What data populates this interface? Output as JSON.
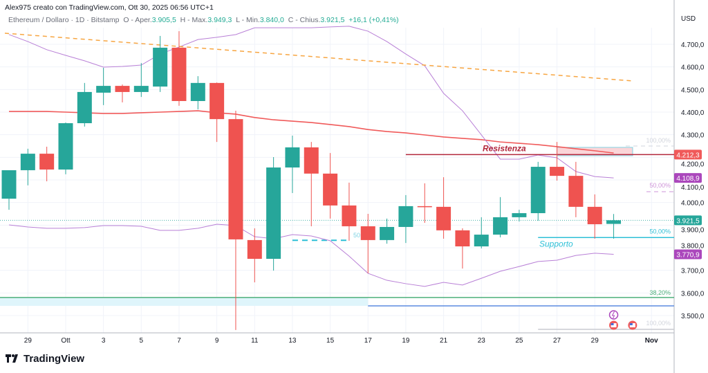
{
  "header": {
    "author_line": "Alex975 creato con TradingView.com, Ott 30, 2025 06:56 UTC+1",
    "symbol": "Ethereum / Dollaro · 1D · Bitstamp",
    "open_label": "O - Aper.",
    "open": "3.905,5",
    "high_label": "H - Max.",
    "high": "3.949,3",
    "low_label": "L - Min.",
    "low": "3.840,0",
    "close_label": "C - Chius.",
    "close": "3.921,5",
    "change": "+16,1 (+0,41%)"
  },
  "logo": {
    "text": "TradingView"
  },
  "currency": "USD",
  "colors": {
    "up": "#26a69a",
    "down": "#ef5350",
    "ma": "#f05a5a",
    "bands": "#b87fd6",
    "trend": "#f7a541",
    "resistance": "#b2263b",
    "support": "#2dbfd6",
    "fib_382": "#4caf7a",
    "fib_blue": "#5b8be0"
  },
  "chart_data": {
    "type": "candlestick",
    "title": "",
    "y_axis": {
      "min": 3440,
      "max": 4800,
      "ticks": [
        4700,
        4600,
        4500,
        4400,
        4300,
        4200,
        4100,
        4000,
        3900,
        3800,
        3700,
        3600,
        3500
      ],
      "tick_labels": [
        "4.700,0",
        "4.600,0",
        "4.500,0",
        "4.400,0",
        "4.300,0",
        "4.200,0",
        "4.100,0",
        "4.000,0",
        "3.900,0",
        "3.800,0",
        "3.700,0",
        "3.600,0",
        "3.500,0"
      ]
    },
    "x_axis": {
      "ticks": [
        {
          "date": "2025-09-29",
          "label": "29"
        },
        {
          "date": "2025-10-01",
          "label": "Ott"
        },
        {
          "date": "2025-10-03",
          "label": "3"
        },
        {
          "date": "2025-10-05",
          "label": "5"
        },
        {
          "date": "2025-10-07",
          "label": "7"
        },
        {
          "date": "2025-10-09",
          "label": "9"
        },
        {
          "date": "2025-10-11",
          "label": "11"
        },
        {
          "date": "2025-10-13",
          "label": "13"
        },
        {
          "date": "2025-10-15",
          "label": "15"
        },
        {
          "date": "2025-10-17",
          "label": "17"
        },
        {
          "date": "2025-10-19",
          "label": "19"
        },
        {
          "date": "2025-10-21",
          "label": "21"
        },
        {
          "date": "2025-10-23",
          "label": "23"
        },
        {
          "date": "2025-10-25",
          "label": "25"
        },
        {
          "date": "2025-10-27",
          "label": "27"
        },
        {
          "date": "2025-10-29",
          "label": "29"
        },
        {
          "date": "2025-11-01",
          "label": "Nov"
        }
      ]
    },
    "grid": true,
    "candles": [
      [
        "2025-09-28",
        4017,
        4143,
        3968,
        4143
      ],
      [
        "2025-09-29",
        4143,
        4238,
        4076,
        4216
      ],
      [
        "2025-09-30",
        4216,
        4247,
        4094,
        4146
      ],
      [
        "2025-10-01",
        4146,
        4354,
        4125,
        4351
      ],
      [
        "2025-10-02",
        4351,
        4529,
        4336,
        4489
      ],
      [
        "2025-10-03",
        4486,
        4596,
        4431,
        4516
      ],
      [
        "2025-10-04",
        4516,
        4522,
        4443,
        4489
      ],
      [
        "2025-10-05",
        4489,
        4617,
        4467,
        4516
      ],
      [
        "2025-10-06",
        4513,
        4737,
        4489,
        4685
      ],
      [
        "2025-10-07",
        4685,
        4758,
        4428,
        4449
      ],
      [
        "2025-10-08",
        4449,
        4559,
        4412,
        4529
      ],
      [
        "2025-10-09",
        4529,
        4531,
        4268,
        4369
      ],
      [
        "2025-10-10",
        4369,
        4406,
        3436,
        3837
      ],
      [
        "2025-10-11",
        3834,
        3886,
        3647,
        3751
      ],
      [
        "2025-10-12",
        3751,
        4201,
        3699,
        4155
      ],
      [
        "2025-10-13",
        4155,
        4296,
        4042,
        4244
      ],
      [
        "2025-10-14",
        4244,
        4268,
        3895,
        4128
      ],
      [
        "2025-10-15",
        4128,
        4219,
        3929,
        3987
      ],
      [
        "2025-10-16",
        3987,
        4088,
        3831,
        3895
      ],
      [
        "2025-10-17",
        3895,
        3950,
        3687,
        3834
      ],
      [
        "2025-10-18",
        3834,
        3929,
        3818,
        3892
      ],
      [
        "2025-10-19",
        3892,
        4033,
        3821,
        3984
      ],
      [
        "2025-10-20",
        3984,
        4085,
        3910,
        3981
      ],
      [
        "2025-10-21",
        3981,
        4112,
        3840,
        3877
      ],
      [
        "2025-10-22",
        3877,
        3886,
        3708,
        3806
      ],
      [
        "2025-10-23",
        3806,
        3935,
        3797,
        3858
      ],
      [
        "2025-10-24",
        3858,
        4024,
        3846,
        3935
      ],
      [
        "2025-10-25",
        3935,
        3968,
        3916,
        3953
      ],
      [
        "2025-10-26",
        3953,
        4180,
        3919,
        4158
      ],
      [
        "2025-10-27",
        4158,
        4268,
        4097,
        4118
      ],
      [
        "2025-10-28",
        4118,
        4180,
        3935,
        3981
      ],
      [
        "2025-10-29",
        3981,
        4036,
        3840,
        3904
      ],
      [
        "2025-10-30",
        3905.5,
        3949.3,
        3840.0,
        3921.5
      ]
    ],
    "series": [
      {
        "kind": "moving-average",
        "color": "#f05a5a",
        "values": [
          4403,
          4403,
          4403,
          4400,
          4397,
          4394,
          4394,
          4397,
          4400,
          4403,
          4406,
          4397,
          4391,
          4376,
          4366,
          4360,
          4354,
          4345,
          4336,
          4323,
          4314,
          4308,
          4299,
          4290,
          4284,
          4278,
          4268,
          4262,
          4256,
          4247,
          4238,
          4229,
          4219
        ]
      },
      {
        "kind": "bollinger-upper",
        "color": "#b87fd6",
        "values": [
          4743,
          4712,
          4676,
          4651,
          4627,
          4599,
          4602,
          4608,
          4657,
          4688,
          4721,
          4731,
          4743,
          4773,
          4773,
          4773,
          4773,
          4777,
          4780,
          4758,
          4712,
          4657,
          4605,
          4483,
          4406,
          4299,
          4192,
          4192,
          4210,
          4198,
          4137,
          4115,
          4108.9
        ]
      },
      {
        "kind": "bollinger-lower",
        "color": "#b87fd6",
        "values": [
          3901,
          3892,
          3886,
          3886,
          3889,
          3898,
          3898,
          3895,
          3877,
          3877,
          3886,
          3904,
          3898,
          3849,
          3840,
          3858,
          3852,
          3831,
          3763,
          3687,
          3656,
          3641,
          3629,
          3647,
          3635,
          3665,
          3696,
          3717,
          3739,
          3745,
          3766,
          3776,
          3770.9
        ]
      }
    ],
    "trendline": {
      "from": {
        "date": "2025-09-28",
        "price": 4749
      },
      "to": {
        "date": "2025-10-31",
        "price": 4538
      }
    },
    "drawings": {
      "resistance": {
        "label": "Resistenza",
        "price": 4212.3,
        "from": "2025-10-19"
      },
      "support": {
        "label": "Supporto",
        "price": 3845,
        "from": "2025-10-26"
      },
      "resistance_zone": {
        "from": "2025-10-27",
        "to": "2025-10-31",
        "top": 4244,
        "bottom": 4207
      },
      "fib_top": {
        "label": "100,00%",
        "price": 4250
      },
      "fib_mid_upper": {
        "label": "50,00%",
        "price": 4048
      },
      "fib_mid_support": {
        "label": "50,00%"
      },
      "fib_mid_left": {
        "label": "50,00%",
        "price": 3833,
        "from": "2025-10-13",
        "to": "2025-10-16"
      },
      "fib_382": {
        "label": "38,20%",
        "price": 3580
      },
      "fib_blue": {
        "price": 3543,
        "from": "2025-10-17"
      },
      "fib_zone": {
        "to": "2025-10-17",
        "top": 3580,
        "bottom": 3543
      },
      "fib_bottom": {
        "label": "100,00%",
        "price": 3439,
        "from": "2025-10-26"
      }
    },
    "price_labels": [
      {
        "text": "4.212,3",
        "price": 4212.3,
        "color": "#f05a5a"
      },
      {
        "text": "4.108,9",
        "price": 4108.9,
        "color": "#ab47bc"
      },
      {
        "text": "3.921,5",
        "price": 3921.5,
        "color": "#26a69a"
      },
      {
        "text": "3.770,9",
        "price": 3770.9,
        "color": "#ab47bc"
      }
    ],
    "current_price": 3921.5,
    "events": [
      {
        "icon": "lightning-icon",
        "date": "2025-10-30"
      },
      {
        "icon": "us-flag-icon",
        "date": "2025-10-30"
      },
      {
        "icon": "us-flag-icon",
        "date": "2025-10-31"
      }
    ]
  }
}
